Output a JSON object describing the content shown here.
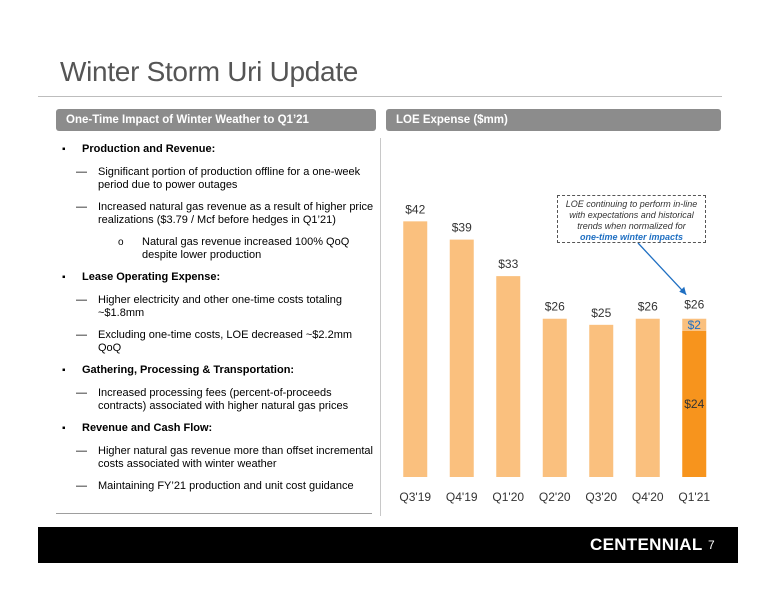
{
  "title": "Winter Storm Uri Update",
  "left_header": "One-Time Impact of Winter Weather to Q1’21",
  "right_header": "LOE Expense ($mm)",
  "bullets": [
    {
      "heading": "Production and Revenue:",
      "items": [
        "Significant portion of production offline for a one-week period due to power outages",
        "Increased natural gas revenue as a result of higher price realizations ($3.79 / Mcf before hedges in Q1’21)"
      ],
      "sub_items": [
        "Natural gas revenue increased 100% QoQ despite lower production"
      ]
    },
    {
      "heading": "Lease Operating Expense:",
      "items": [
        "Higher electricity and other one-time costs totaling ~$1.8mm",
        "Excluding one-time costs, LOE decreased ~$2.2mm QoQ"
      ]
    },
    {
      "heading": "Gathering, Processing & Transportation:",
      "items": [
        "Increased processing fees (percent-of-proceeds contracts) associated with higher natural gas prices"
      ]
    },
    {
      "heading": "Revenue and Cash Flow:",
      "items": [
        "Higher natural gas revenue more than offset incremental costs associated with winter weather",
        "Maintaining FY’21 production and unit cost guidance"
      ]
    }
  ],
  "annotation": {
    "text": "LOE continuing to perform in-line with expectations and historical trends when normalized for",
    "emphasis": "one-time winter impacts"
  },
  "chart_data": {
    "type": "bar",
    "title": "LOE Expense ($mm)",
    "categories": [
      "Q3'19",
      "Q4'19",
      "Q1'20",
      "Q2'20",
      "Q3'20",
      "Q4'20",
      "Q1'21"
    ],
    "values": [
      42,
      39,
      33,
      26,
      25,
      26,
      26
    ],
    "labels": [
      "$42",
      "$39",
      "$33",
      "$26",
      "$25",
      "$26",
      "$26"
    ],
    "stack_last": {
      "base": 24,
      "base_label": "$24",
      "top": 2,
      "top_label": "$2"
    },
    "ylim": [
      0,
      46
    ],
    "colors": {
      "bar": "#fac07e",
      "base": "#f7941d",
      "top_label": "#1f6fc2",
      "arrow": "#1f6fc2"
    }
  },
  "footer": {
    "logo": "CENTENNIAL",
    "page": "7"
  }
}
